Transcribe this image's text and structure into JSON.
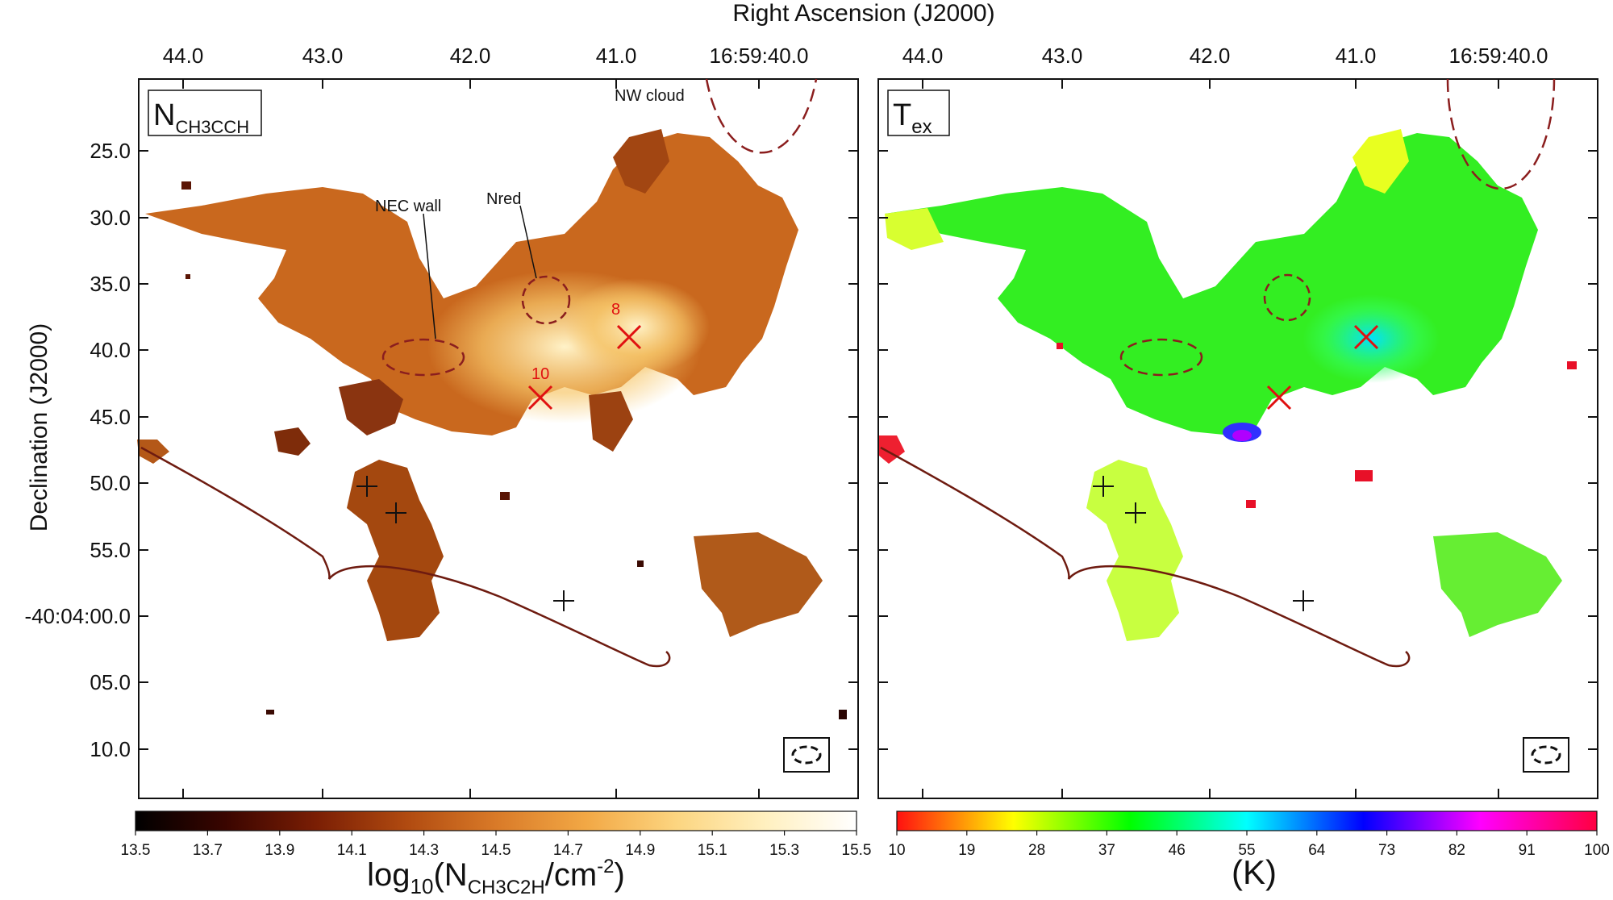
{
  "figure": {
    "top_axis_title": "Right Ascension (J2000)",
    "left_axis_title": "Declination (J2000)",
    "ra_ticks": [
      "44.0",
      "43.0",
      "42.0",
      "41.0",
      "16:59:40.0"
    ],
    "dec_ticks": [
      "25.0",
      "30.0",
      "35.0",
      "40.0",
      "45.0",
      "50.0",
      "55.0",
      "-40:04:00.0",
      "05.0",
      "10.0"
    ]
  },
  "chart_data": [
    {
      "type": "heatmap",
      "panel_label": {
        "main": "N",
        "sub": "CH3CCH"
      },
      "xlabel": "Right Ascension (J2000)",
      "ylabel": "Declination (J2000)",
      "x_ticks": [
        "44.0",
        "43.0",
        "42.0",
        "41.0",
        "16:59:40.0"
      ],
      "y_ticks": [
        "25.0",
        "30.0",
        "35.0",
        "40.0",
        "45.0",
        "50.0",
        "55.0",
        "-40:04:00.0",
        "05.0",
        "10.0"
      ],
      "annotations": [
        "NW cloud",
        "NEC wall",
        "Nred",
        "8",
        "10"
      ],
      "colorbar": {
        "label_prefix": "log",
        "label_base": "10",
        "label_main": "(N",
        "label_sub": "CH3C2H",
        "label_unit": "/cm",
        "label_exp": "-2",
        "label_end": ")",
        "range": [
          13.5,
          15.5
        ],
        "ticks": [
          "13.5",
          "13.7",
          "13.9",
          "14.1",
          "14.3",
          "14.5",
          "14.7",
          "14.9",
          "15.1",
          "15.3",
          "15.5"
        ],
        "colormap": [
          "#000000",
          "#3a0500",
          "#7a1e04",
          "#b04a10",
          "#d97a28",
          "#f2a845",
          "#fcd580",
          "#fff0c0",
          "#ffffff"
        ]
      }
    },
    {
      "type": "heatmap",
      "panel_label": {
        "main": "T",
        "sub": "ex"
      },
      "xlabel": "Right Ascension (J2000)",
      "ylabel": "Declination (J2000)",
      "x_ticks": [
        "44.0",
        "43.0",
        "42.0",
        "41.0",
        "16:59:40.0"
      ],
      "annotations": [],
      "colorbar": {
        "label": "(K)",
        "range": [
          10,
          100
        ],
        "ticks": [
          "10",
          "19",
          "28",
          "37",
          "46",
          "55",
          "64",
          "73",
          "82",
          "91",
          "100"
        ],
        "colormap": [
          "#ff1010",
          "#ffff00",
          "#00ff00",
          "#00ffff",
          "#0000ff",
          "#ff00ff",
          "#ff0040"
        ]
      }
    }
  ]
}
